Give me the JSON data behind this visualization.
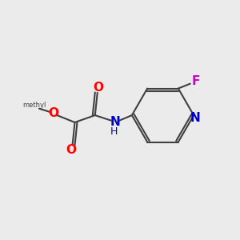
{
  "background_color": "#ebebeb",
  "bond_color": "#404040",
  "bond_width": 1.5,
  "atom_colors": {
    "O": "#ff0000",
    "N": "#0000cc",
    "F": "#cc00cc",
    "C": "#404040"
  },
  "font_size_atoms": 11,
  "font_size_small": 9
}
